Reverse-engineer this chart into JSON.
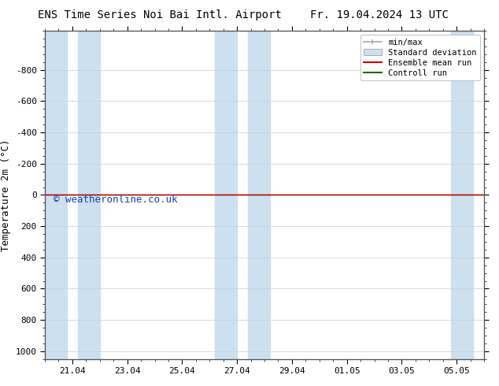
{
  "title_left": "ENS Time Series Noi Bai Intl. Airport",
  "title_right": "Fr. 19.04.2024 13 UTC",
  "ylabel": "Temperature 2m (°C)",
  "ylim_top": -1050,
  "ylim_bottom": 1050,
  "yticks": [
    -800,
    -600,
    -400,
    -200,
    0,
    200,
    400,
    600,
    800,
    1000
  ],
  "x_labels": [
    "21.04",
    "23.04",
    "25.04",
    "27.04",
    "29.04",
    "01.05",
    "03.05",
    "05.05"
  ],
  "x_tick_pos": [
    1,
    3,
    5,
    7,
    9,
    11,
    13,
    15
  ],
  "x_min": 0,
  "x_max": 16,
  "shaded_bands": [
    [
      0.0,
      0.8
    ],
    [
      1.2,
      2.0
    ],
    [
      6.2,
      7.0
    ],
    [
      7.4,
      8.2
    ],
    [
      14.8,
      15.6
    ]
  ],
  "shaded_color": "#cce0f0",
  "control_run_y": 0,
  "ensemble_mean_y": 0,
  "line_color_control": "#226600",
  "line_color_ensemble": "#cc0000",
  "watermark_text": "© weatheronline.co.uk",
  "watermark_color": "#1144bb",
  "watermark_font_size": 9,
  "bg_color": "#ffffff",
  "title_fontsize": 10,
  "axis_label_fontsize": 9,
  "tick_fontsize": 8,
  "legend_fontsize": 7.5,
  "spine_color": "#555555",
  "grid_color": "#cccccc"
}
